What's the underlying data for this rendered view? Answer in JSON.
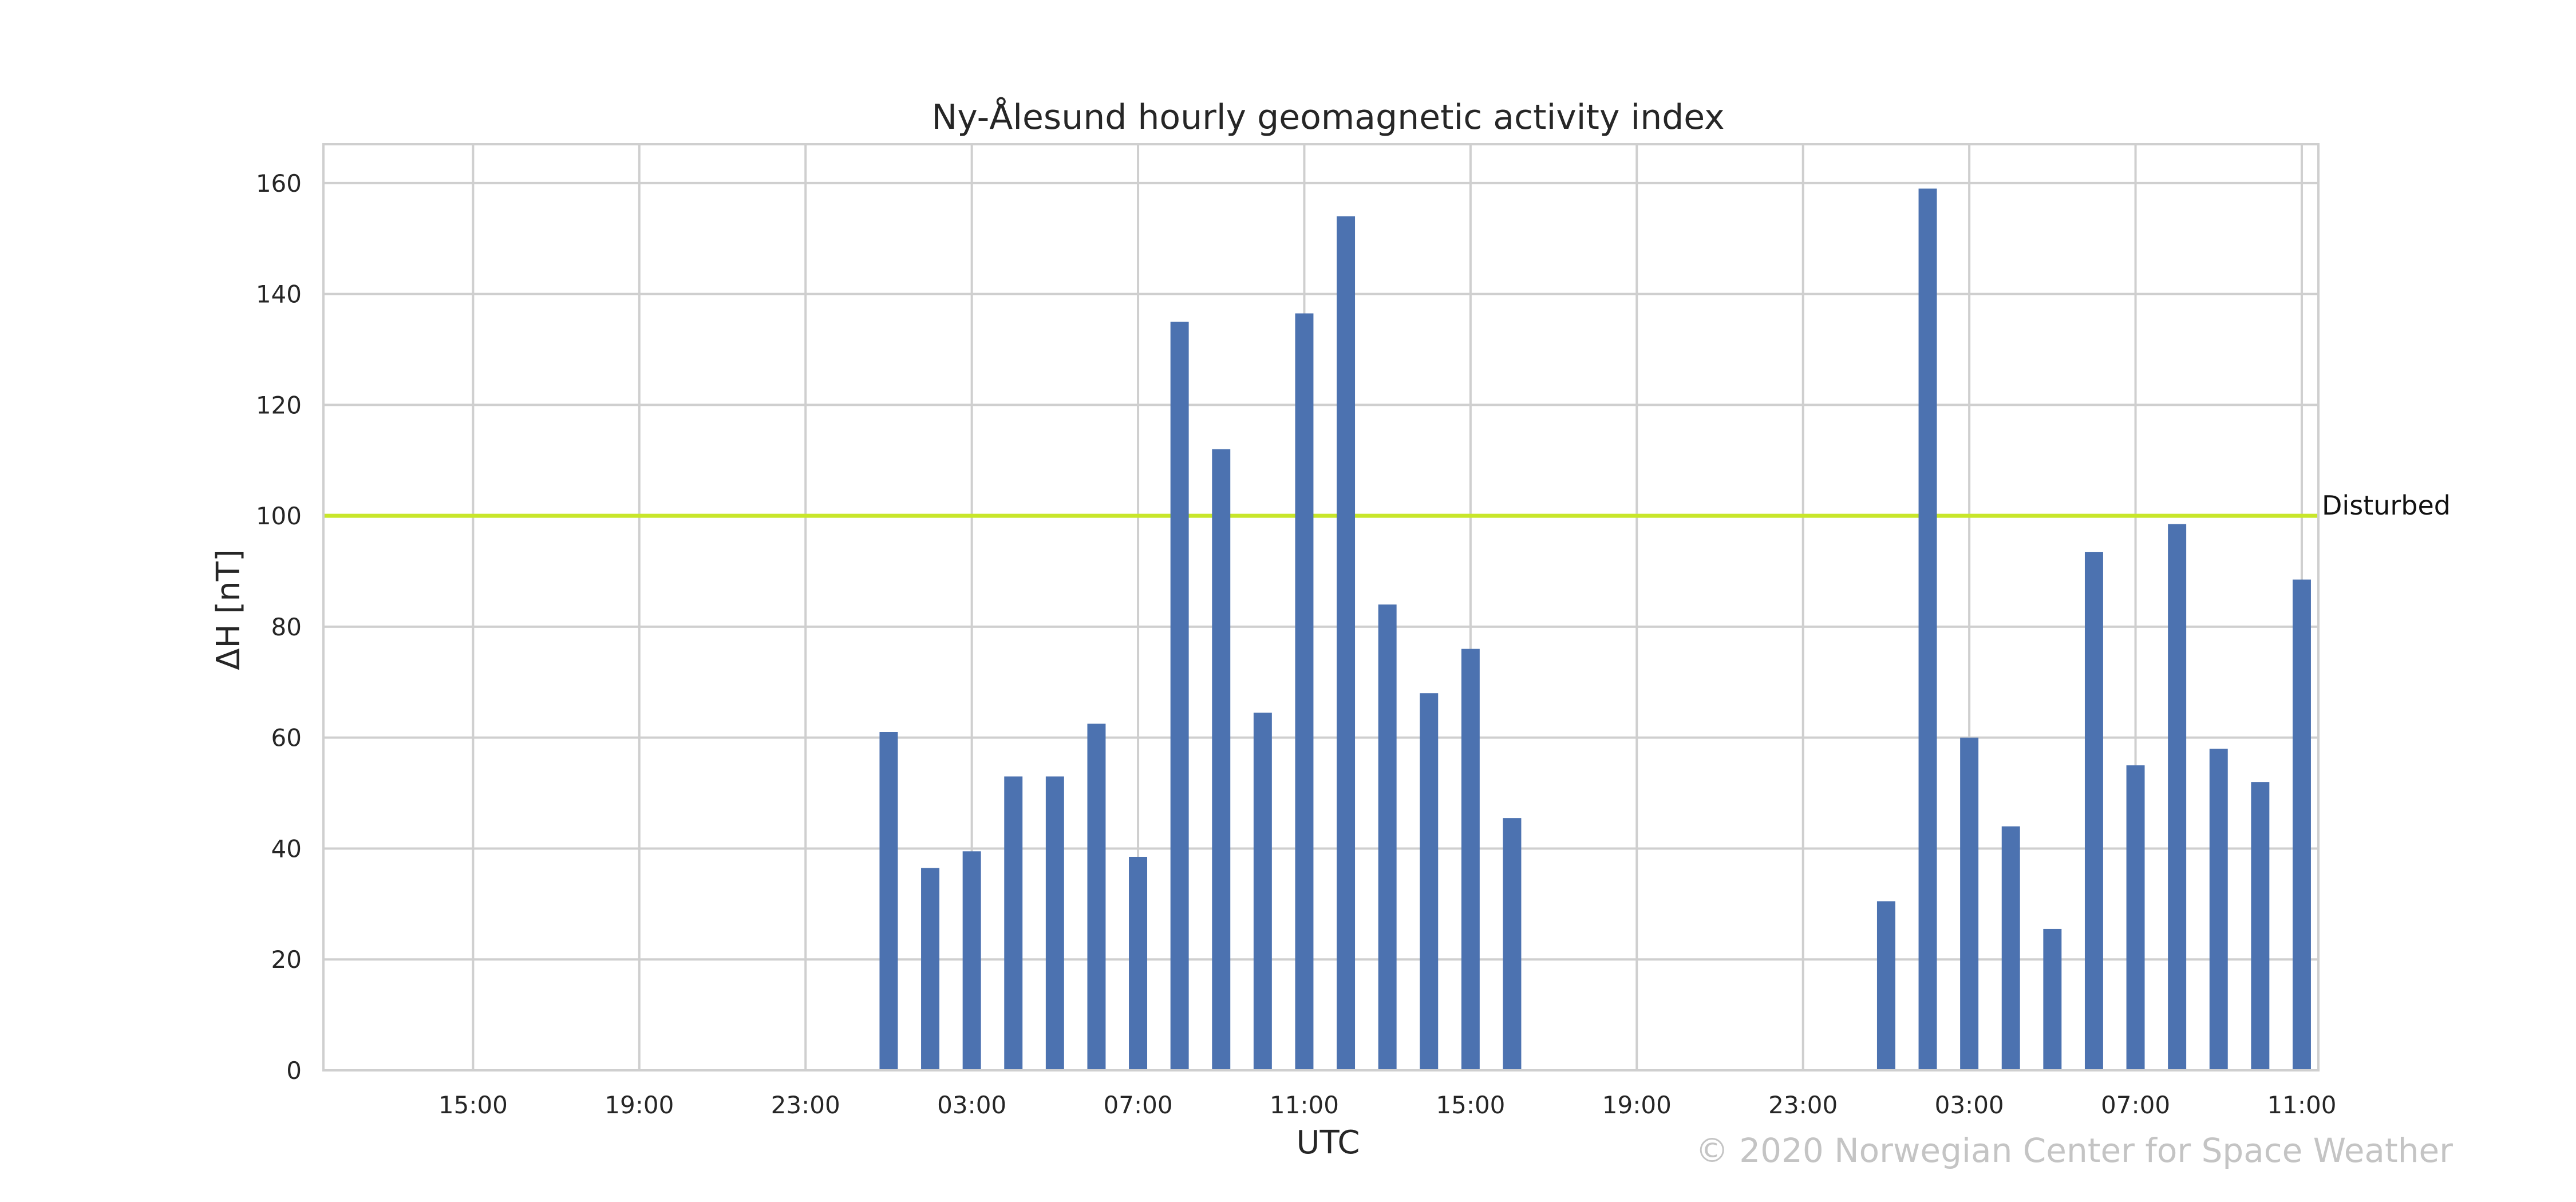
{
  "chart_data": {
    "type": "bar",
    "title": "Ny-Ålesund hourly geomagnetic activity index",
    "xlabel": "UTC",
    "ylabel": "ΔH [nT]",
    "ylim": [
      0,
      167
    ],
    "yticks": [
      0,
      20,
      40,
      60,
      80,
      100,
      120,
      140,
      160
    ],
    "xlim": [
      -3.6,
      44.4
    ],
    "xticks": [
      {
        "pos": 0,
        "label": "15:00"
      },
      {
        "pos": 4,
        "label": "19:00"
      },
      {
        "pos": 8,
        "label": "23:00"
      },
      {
        "pos": 12,
        "label": "03:00"
      },
      {
        "pos": 16,
        "label": "07:00"
      },
      {
        "pos": 20,
        "label": "11:00"
      },
      {
        "pos": 24,
        "label": "15:00"
      },
      {
        "pos": 28,
        "label": "19:00"
      },
      {
        "pos": 32,
        "label": "23:00"
      },
      {
        "pos": 36,
        "label": "03:00"
      },
      {
        "pos": 40,
        "label": "07:00"
      },
      {
        "pos": 44,
        "label": "11:00"
      }
    ],
    "grid": true,
    "bar_color": "#4c72b0",
    "threshold": {
      "value": 100,
      "label": "Disturbed",
      "color": "#c8e62a"
    },
    "bars": [
      {
        "x": 10,
        "value": 61
      },
      {
        "x": 11,
        "value": 36.5
      },
      {
        "x": 12,
        "value": 39.5
      },
      {
        "x": 13,
        "value": 53
      },
      {
        "x": 14,
        "value": 53
      },
      {
        "x": 15,
        "value": 62.5
      },
      {
        "x": 16,
        "value": 38.5
      },
      {
        "x": 17,
        "value": 135
      },
      {
        "x": 18,
        "value": 112
      },
      {
        "x": 19,
        "value": 64.5
      },
      {
        "x": 20,
        "value": 136.5
      },
      {
        "x": 21,
        "value": 154
      },
      {
        "x": 22,
        "value": 84
      },
      {
        "x": 23,
        "value": 68
      },
      {
        "x": 24,
        "value": 76
      },
      {
        "x": 25,
        "value": 45.5
      },
      {
        "x": 34,
        "value": 30.5
      },
      {
        "x": 35,
        "value": 159
      },
      {
        "x": 36,
        "value": 60
      },
      {
        "x": 37,
        "value": 44
      },
      {
        "x": 38,
        "value": 25.5
      },
      {
        "x": 39,
        "value": 93.5
      },
      {
        "x": 40,
        "value": 55
      },
      {
        "x": 41,
        "value": 98.5
      },
      {
        "x": 42,
        "value": 58
      },
      {
        "x": 43,
        "value": 52
      },
      {
        "x": 44,
        "value": 88.5
      }
    ]
  },
  "copyright": "© 2020 Norwegian Center for Space Weather"
}
